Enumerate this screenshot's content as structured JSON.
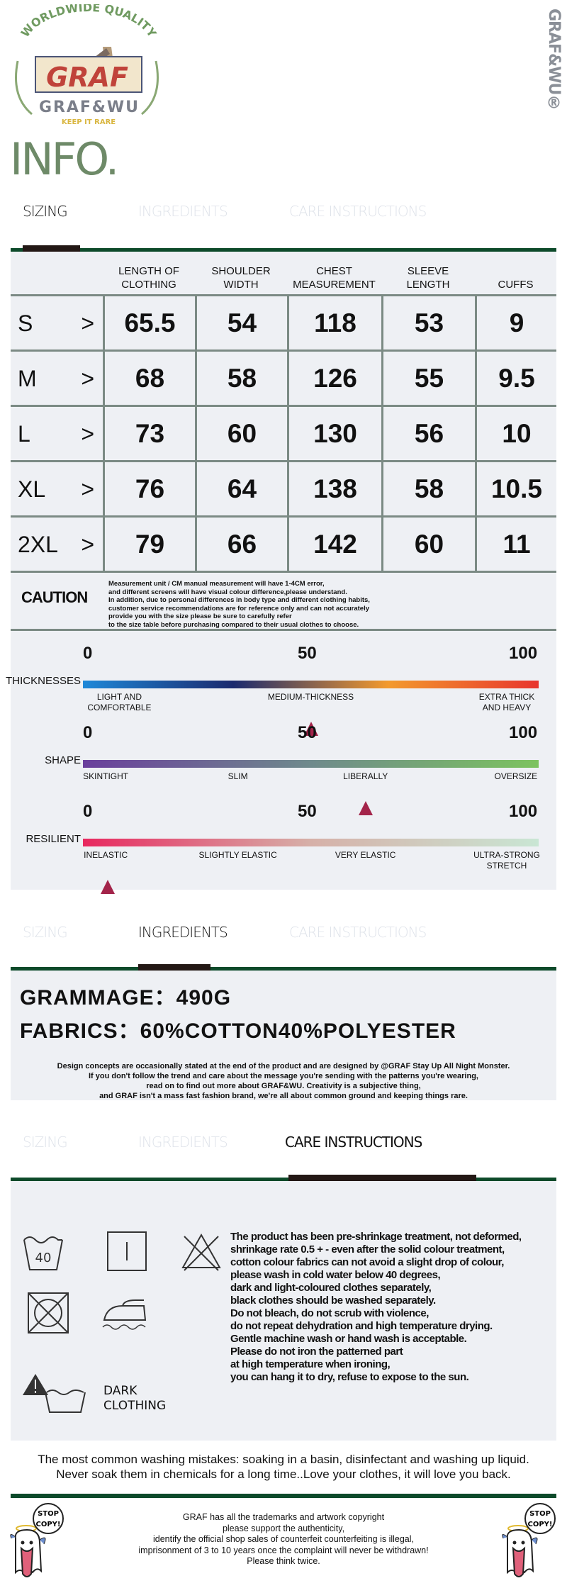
{
  "logo": {
    "arc_text": "WORLDWIDE QUALITY",
    "mark": "GRAF",
    "brand": "GRAF&WU",
    "tagline": "KEEP IT RARE"
  },
  "side_brand": "GRAF&WU®",
  "title": "INFO.",
  "tabs": [
    "SIZING",
    "INGREDIENTS",
    "CARE INSTRUCTIONS"
  ],
  "sizing": {
    "headers": [
      "",
      "LENGTH OF\nCLOTHING",
      "SHOULDER\nWIDTH",
      "CHEST\nMEASUREMENT",
      "SLEEVE\nLENGTH",
      "CUFFS"
    ],
    "rows": [
      {
        "size": "S",
        "arrow": ">",
        "values": [
          "65.5",
          "54",
          "118",
          "53",
          "9"
        ]
      },
      {
        "size": "M",
        "arrow": ">",
        "values": [
          "68",
          "58",
          "126",
          "55",
          "9.5"
        ]
      },
      {
        "size": "L",
        "arrow": ">",
        "values": [
          "73",
          "60",
          "130",
          "56",
          "10"
        ]
      },
      {
        "size": "XL",
        "arrow": ">",
        "values": [
          "76",
          "64",
          "138",
          "58",
          "10.5"
        ]
      },
      {
        "size": "2XL",
        "arrow": ">",
        "values": [
          "79",
          "66",
          "142",
          "60",
          "11"
        ]
      }
    ],
    "caution_title": "CAUTION",
    "caution_text": "Measurement unit / CM manual measurement will have 1-4CM error,\nand different screens will have visual colour difference,please understand.\nIn addition, due to personal differences in body type and different clothing habits,\ncustomer service recommendations are for reference only and can not accurately\nprovide you with the size please be sure to carefully refer\nto the size table before purchasing compared to their usual clothes to choose."
  },
  "scales": [
    {
      "name": "THICKNESSES",
      "ticks": [
        "0",
        "50",
        "100"
      ],
      "value": 50,
      "colors": [
        "#1e88d8",
        "#1b2a6e",
        "#f39a2e",
        "#e8352e"
      ],
      "labels": [
        {
          "text": "LIGHT AND\nCOMFORTABLE",
          "pos": 8
        },
        {
          "text": "MEDIUM-THICKNESS",
          "pos": 50
        },
        {
          "text": "EXTRA THICK\nAND HEAVY",
          "pos": 93
        }
      ]
    },
    {
      "name": "SHAPE",
      "ticks": [
        "0",
        "50",
        "100"
      ],
      "value": 62,
      "colors": [
        "#6a3f9c",
        "#6f8a8c",
        "#7cc35f"
      ],
      "labels": [
        {
          "text": "SKINTIGHT",
          "pos": 5
        },
        {
          "text": "SLIM",
          "pos": 34
        },
        {
          "text": "LIBERALLY",
          "pos": 62
        },
        {
          "text": "OVERSIZE",
          "pos": 95
        }
      ]
    },
    {
      "name": "RESILIENT",
      "ticks": [
        "0",
        "50",
        "100"
      ],
      "value": 5.5,
      "colors": [
        "#e8285f",
        "#d6b0a8",
        "#c9e6d4"
      ],
      "labels": [
        {
          "text": "INELASTIC",
          "pos": 5
        },
        {
          "text": "SLIGHTLY ELASTIC",
          "pos": 34
        },
        {
          "text": "VERY ELASTIC",
          "pos": 62
        },
        {
          "text": "ULTRA-STRONG\nSTRETCH",
          "pos": 93
        }
      ]
    }
  ],
  "ingredients": {
    "grammage": "GRAMMAGE：490G",
    "fabrics": "FABRICS：60%COTTON40%POLYESTER",
    "design_text": "Design concepts are occasionally stated at the end of the product and are designed by @GRAF Stay Up All Night Monster.\nIf you don't follow the trend and care about the message you're sending with the patterns you're wearing,\nread on to find out more about GRAF&WU. Creativity is a subjective thing,\nand GRAF isn't a mass fast fashion brand, we're all about common ground and keeping things rare."
  },
  "care": {
    "wash_temp": "40",
    "dark_label": "DARK\nCLOTHING",
    "text": "The product has been pre-shrinkage treatment, not deformed,\nshrinkage rate 0.5 + - even after the solid colour treatment,\ncotton colour fabrics can not avoid a slight drop of colour,\nplease wash in cold water below 40 degrees,\ndark and light-coloured clothes separately,\nblack clothes should be washed separately.\nDo not bleach, do not scrub with violence,\ndo not repeat dehydration and high temperature drying.\nGentle machine wash or hand wash is acceptable.\nPlease do not iron the patterned part\nat high temperature when ironing,\nyou can hang it to dry, refuse to expose to the sun.",
    "mistakes": "The most common washing mistakes: soaking in a basin, disinfectant and washing up liquid.\nNever soak them in chemicals for a long time..Love your clothes, it will love you back."
  },
  "footer": {
    "stop_copy": [
      "STOP",
      "COPY!"
    ],
    "text": "GRAF has all the trademarks and artwork copyright\nplease support the authenticity,\nidentify the official shop sales of counterfeit counterfeiting is illegal,\nimprisonment of 3 to 10 years once the complaint will never be withdrawn!\nPlease think twice."
  },
  "colors": {
    "accent_green": "#0d4a2a",
    "tab_marker": "#231815",
    "panel": "#eef0f4",
    "title": "#6e8a68",
    "pointer": "#a3244a"
  }
}
